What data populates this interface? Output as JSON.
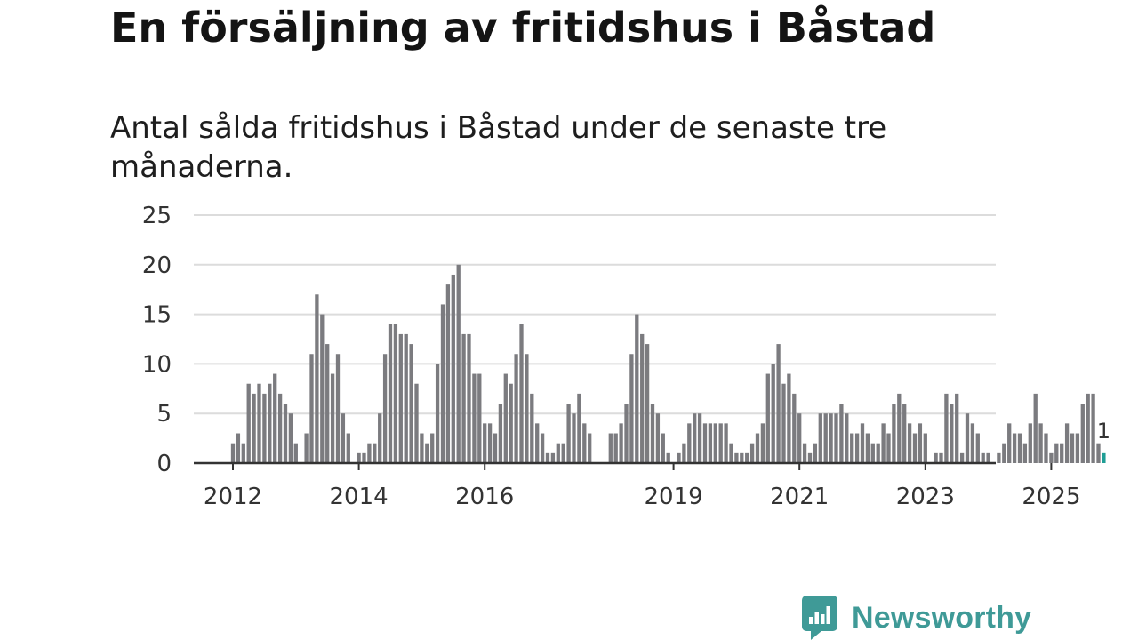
{
  "header": {
    "title": "En försäljning av fritidshus i Båstad",
    "subtitle": "Antal sålda fritidshus i Båstad under de senaste tre månaderna."
  },
  "brand": {
    "name": "Newsworthy",
    "icon": "newsworthy-logo-icon"
  },
  "colors": {
    "bar": "#7b7b7f",
    "highlight": "#1f9e96",
    "grid": "#dcdcdc",
    "axis": "#333333"
  },
  "chart_data": {
    "type": "bar",
    "x_start": "2011-01",
    "x_end": "2025-11",
    "x_ticks": [
      {
        "label": "2012",
        "x": "2012-01"
      },
      {
        "label": "2014",
        "x": "2014-01"
      },
      {
        "label": "2016",
        "x": "2016-01"
      },
      {
        "label": "2019",
        "x": "2019-01"
      },
      {
        "label": "2021",
        "x": "2021-01"
      },
      {
        "label": "2023",
        "x": "2023-01"
      },
      {
        "label": "2025",
        "x": "2025-01"
      }
    ],
    "ylim": [
      0,
      25
    ],
    "y_ticks": [
      0,
      5,
      10,
      15,
      20,
      25
    ],
    "grid": true,
    "series": [
      {
        "values": [
          {
            "x": "2012-01",
            "y": 2
          },
          {
            "x": "2012-02",
            "y": 3
          },
          {
            "x": "2012-03",
            "y": 2
          },
          {
            "x": "2012-04",
            "y": 8
          },
          {
            "x": "2012-05",
            "y": 7
          },
          {
            "x": "2012-06",
            "y": 8
          },
          {
            "x": "2012-07",
            "y": 7
          },
          {
            "x": "2012-08",
            "y": 8
          },
          {
            "x": "2012-09",
            "y": 9
          },
          {
            "x": "2012-10",
            "y": 7
          },
          {
            "x": "2012-11",
            "y": 6
          },
          {
            "x": "2012-12",
            "y": 5
          },
          {
            "x": "2013-01",
            "y": 2
          },
          {
            "x": "2013-02",
            "y": 0
          },
          {
            "x": "2013-03",
            "y": 3
          },
          {
            "x": "2013-04",
            "y": 11
          },
          {
            "x": "2013-05",
            "y": 17
          },
          {
            "x": "2013-06",
            "y": 15
          },
          {
            "x": "2013-07",
            "y": 12
          },
          {
            "x": "2013-08",
            "y": 9
          },
          {
            "x": "2013-09",
            "y": 11
          },
          {
            "x": "2013-10",
            "y": 5
          },
          {
            "x": "2013-11",
            "y": 3
          },
          {
            "x": "2013-12",
            "y": 0
          },
          {
            "x": "2014-01",
            "y": 1
          },
          {
            "x": "2014-02",
            "y": 1
          },
          {
            "x": "2014-03",
            "y": 2
          },
          {
            "x": "2014-04",
            "y": 2
          },
          {
            "x": "2014-05",
            "y": 5
          },
          {
            "x": "2014-06",
            "y": 11
          },
          {
            "x": "2014-07",
            "y": 14
          },
          {
            "x": "2014-08",
            "y": 14
          },
          {
            "x": "2014-09",
            "y": 13
          },
          {
            "x": "2014-10",
            "y": 13
          },
          {
            "x": "2014-11",
            "y": 12
          },
          {
            "x": "2014-12",
            "y": 8
          },
          {
            "x": "2015-01",
            "y": 3
          },
          {
            "x": "2015-02",
            "y": 2
          },
          {
            "x": "2015-03",
            "y": 3
          },
          {
            "x": "2015-04",
            "y": 10
          },
          {
            "x": "2015-05",
            "y": 16
          },
          {
            "x": "2015-06",
            "y": 18
          },
          {
            "x": "2015-07",
            "y": 19
          },
          {
            "x": "2015-08",
            "y": 20
          },
          {
            "x": "2015-09",
            "y": 13
          },
          {
            "x": "2015-10",
            "y": 13
          },
          {
            "x": "2015-11",
            "y": 9
          },
          {
            "x": "2015-12",
            "y": 9
          },
          {
            "x": "2016-01",
            "y": 4
          },
          {
            "x": "2016-02",
            "y": 4
          },
          {
            "x": "2016-03",
            "y": 3
          },
          {
            "x": "2016-04",
            "y": 6
          },
          {
            "x": "2016-05",
            "y": 9
          },
          {
            "x": "2016-06",
            "y": 8
          },
          {
            "x": "2016-07",
            "y": 11
          },
          {
            "x": "2016-08",
            "y": 14
          },
          {
            "x": "2016-09",
            "y": 11
          },
          {
            "x": "2016-10",
            "y": 7
          },
          {
            "x": "2016-11",
            "y": 4
          },
          {
            "x": "2016-12",
            "y": 3
          },
          {
            "x": "2017-01",
            "y": 1
          },
          {
            "x": "2017-02",
            "y": 1
          },
          {
            "x": "2017-03",
            "y": 2
          },
          {
            "x": "2017-04",
            "y": 2
          },
          {
            "x": "2017-05",
            "y": 6
          },
          {
            "x": "2017-06",
            "y": 5
          },
          {
            "x": "2017-07",
            "y": 7
          },
          {
            "x": "2017-08",
            "y": 4
          },
          {
            "x": "2017-09",
            "y": 3
          },
          {
            "x": "2018-01",
            "y": 3
          },
          {
            "x": "2018-02",
            "y": 3
          },
          {
            "x": "2018-03",
            "y": 4
          },
          {
            "x": "2018-04",
            "y": 6
          },
          {
            "x": "2018-05",
            "y": 11
          },
          {
            "x": "2018-06",
            "y": 15
          },
          {
            "x": "2018-07",
            "y": 13
          },
          {
            "x": "2018-08",
            "y": 12
          },
          {
            "x": "2018-09",
            "y": 6
          },
          {
            "x": "2018-10",
            "y": 5
          },
          {
            "x": "2018-11",
            "y": 3
          },
          {
            "x": "2018-12",
            "y": 1
          },
          {
            "x": "2019-01",
            "y": 0
          },
          {
            "x": "2019-02",
            "y": 1
          },
          {
            "x": "2019-03",
            "y": 2
          },
          {
            "x": "2019-04",
            "y": 4
          },
          {
            "x": "2019-05",
            "y": 5
          },
          {
            "x": "2019-06",
            "y": 5
          },
          {
            "x": "2019-07",
            "y": 4
          },
          {
            "x": "2019-08",
            "y": 4
          },
          {
            "x": "2019-09",
            "y": 4
          },
          {
            "x": "2019-10",
            "y": 4
          },
          {
            "x": "2019-11",
            "y": 4
          },
          {
            "x": "2019-12",
            "y": 2
          },
          {
            "x": "2020-01",
            "y": 1
          },
          {
            "x": "2020-02",
            "y": 1
          },
          {
            "x": "2020-03",
            "y": 1
          },
          {
            "x": "2020-04",
            "y": 2
          },
          {
            "x": "2020-05",
            "y": 3
          },
          {
            "x": "2020-06",
            "y": 4
          },
          {
            "x": "2020-07",
            "y": 9
          },
          {
            "x": "2020-08",
            "y": 10
          },
          {
            "x": "2020-09",
            "y": 12
          },
          {
            "x": "2020-10",
            "y": 8
          },
          {
            "x": "2020-11",
            "y": 9
          },
          {
            "x": "2020-12",
            "y": 7
          },
          {
            "x": "2021-01",
            "y": 5
          },
          {
            "x": "2021-02",
            "y": 2
          },
          {
            "x": "2021-03",
            "y": 1
          },
          {
            "x": "2021-04",
            "y": 2
          },
          {
            "x": "2021-05",
            "y": 5
          },
          {
            "x": "2021-06",
            "y": 5
          },
          {
            "x": "2021-07",
            "y": 5
          },
          {
            "x": "2021-08",
            "y": 5
          },
          {
            "x": "2021-09",
            "y": 6
          },
          {
            "x": "2021-10",
            "y": 5
          },
          {
            "x": "2021-11",
            "y": 3
          },
          {
            "x": "2021-12",
            "y": 3
          },
          {
            "x": "2022-01",
            "y": 4
          },
          {
            "x": "2022-02",
            "y": 3
          },
          {
            "x": "2022-03",
            "y": 2
          },
          {
            "x": "2022-04",
            "y": 2
          },
          {
            "x": "2022-05",
            "y": 4
          },
          {
            "x": "2022-06",
            "y": 3
          },
          {
            "x": "2022-07",
            "y": 6
          },
          {
            "x": "2022-08",
            "y": 7
          },
          {
            "x": "2022-09",
            "y": 6
          },
          {
            "x": "2022-10",
            "y": 4
          },
          {
            "x": "2022-11",
            "y": 3
          },
          {
            "x": "2022-12",
            "y": 4
          },
          {
            "x": "2023-01",
            "y": 3
          },
          {
            "x": "2023-02",
            "y": 0
          },
          {
            "x": "2023-03",
            "y": 1
          },
          {
            "x": "2023-04",
            "y": 1
          },
          {
            "x": "2023-05",
            "y": 7
          },
          {
            "x": "2023-06",
            "y": 6
          },
          {
            "x": "2023-07",
            "y": 7
          },
          {
            "x": "2023-08",
            "y": 1
          },
          {
            "x": "2023-09",
            "y": 5
          },
          {
            "x": "2023-10",
            "y": 4
          },
          {
            "x": "2023-11",
            "y": 3
          },
          {
            "x": "2023-12",
            "y": 1
          },
          {
            "x": "2024-01",
            "y": 1
          },
          {
            "x": "2024-02",
            "y": 0
          },
          {
            "x": "2024-03",
            "y": 1
          },
          {
            "x": "2024-04",
            "y": 2
          },
          {
            "x": "2024-05",
            "y": 4
          },
          {
            "x": "2024-06",
            "y": 3
          },
          {
            "x": "2024-07",
            "y": 3
          },
          {
            "x": "2024-08",
            "y": 2
          },
          {
            "x": "2024-09",
            "y": 4
          },
          {
            "x": "2024-10",
            "y": 7
          },
          {
            "x": "2024-11",
            "y": 4
          },
          {
            "x": "2024-12",
            "y": 3
          },
          {
            "x": "2025-01",
            "y": 1
          },
          {
            "x": "2025-02",
            "y": 2
          },
          {
            "x": "2025-03",
            "y": 2
          },
          {
            "x": "2025-04",
            "y": 4
          },
          {
            "x": "2025-05",
            "y": 3
          },
          {
            "x": "2025-06",
            "y": 3
          },
          {
            "x": "2025-07",
            "y": 6
          },
          {
            "x": "2025-08",
            "y": 7
          },
          {
            "x": "2025-09",
            "y": 7
          },
          {
            "x": "2025-10",
            "y": 2
          },
          {
            "x": "2025-11",
            "y": 1,
            "highlight": true
          }
        ]
      }
    ],
    "annotations": [
      {
        "x": "2025-11",
        "text": "1"
      }
    ]
  }
}
